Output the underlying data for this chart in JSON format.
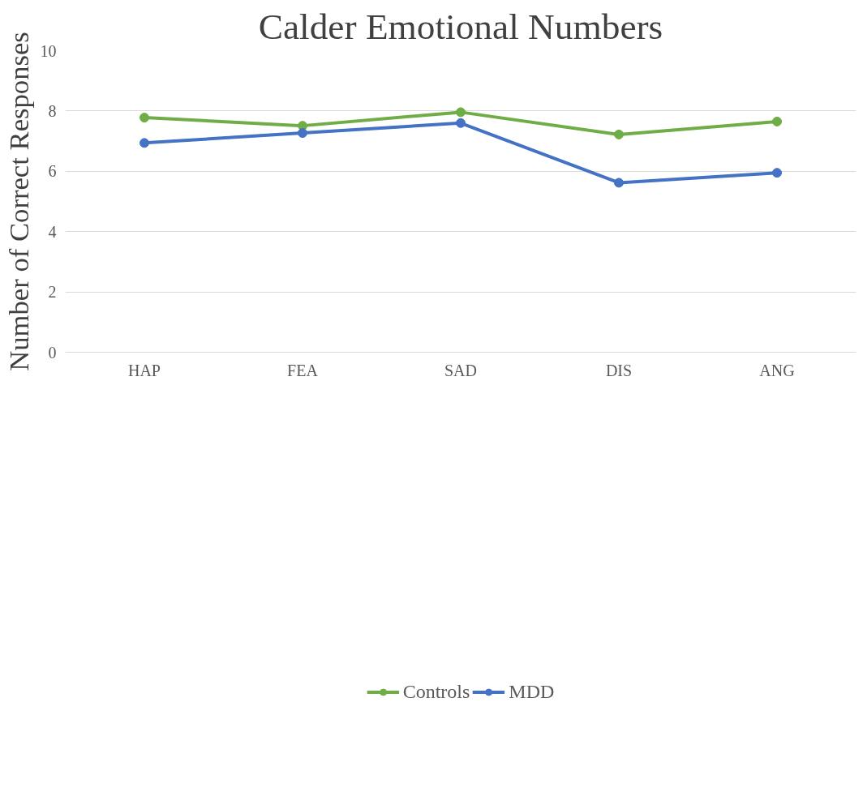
{
  "chart_data": {
    "type": "line",
    "title": "Calder Emotional Numbers",
    "ylabel": "Number of Correct Responses",
    "categories": [
      "HAP",
      "FEA",
      "SAD",
      "DIS",
      "ANG"
    ],
    "series": [
      {
        "name": "Controls",
        "color": "#70ad47",
        "values": [
          7.78,
          7.51,
          7.96,
          7.22,
          7.65
        ]
      },
      {
        "name": "MDD",
        "color": "#4472c4",
        "values": [
          6.94,
          7.27,
          7.6,
          5.62,
          5.95
        ]
      }
    ],
    "ylim": [
      0,
      10
    ],
    "yticks": [
      0,
      2,
      4,
      6,
      8,
      10
    ],
    "grid": "y",
    "legend": "bottom",
    "marker": "circle",
    "line_style": "solid"
  }
}
